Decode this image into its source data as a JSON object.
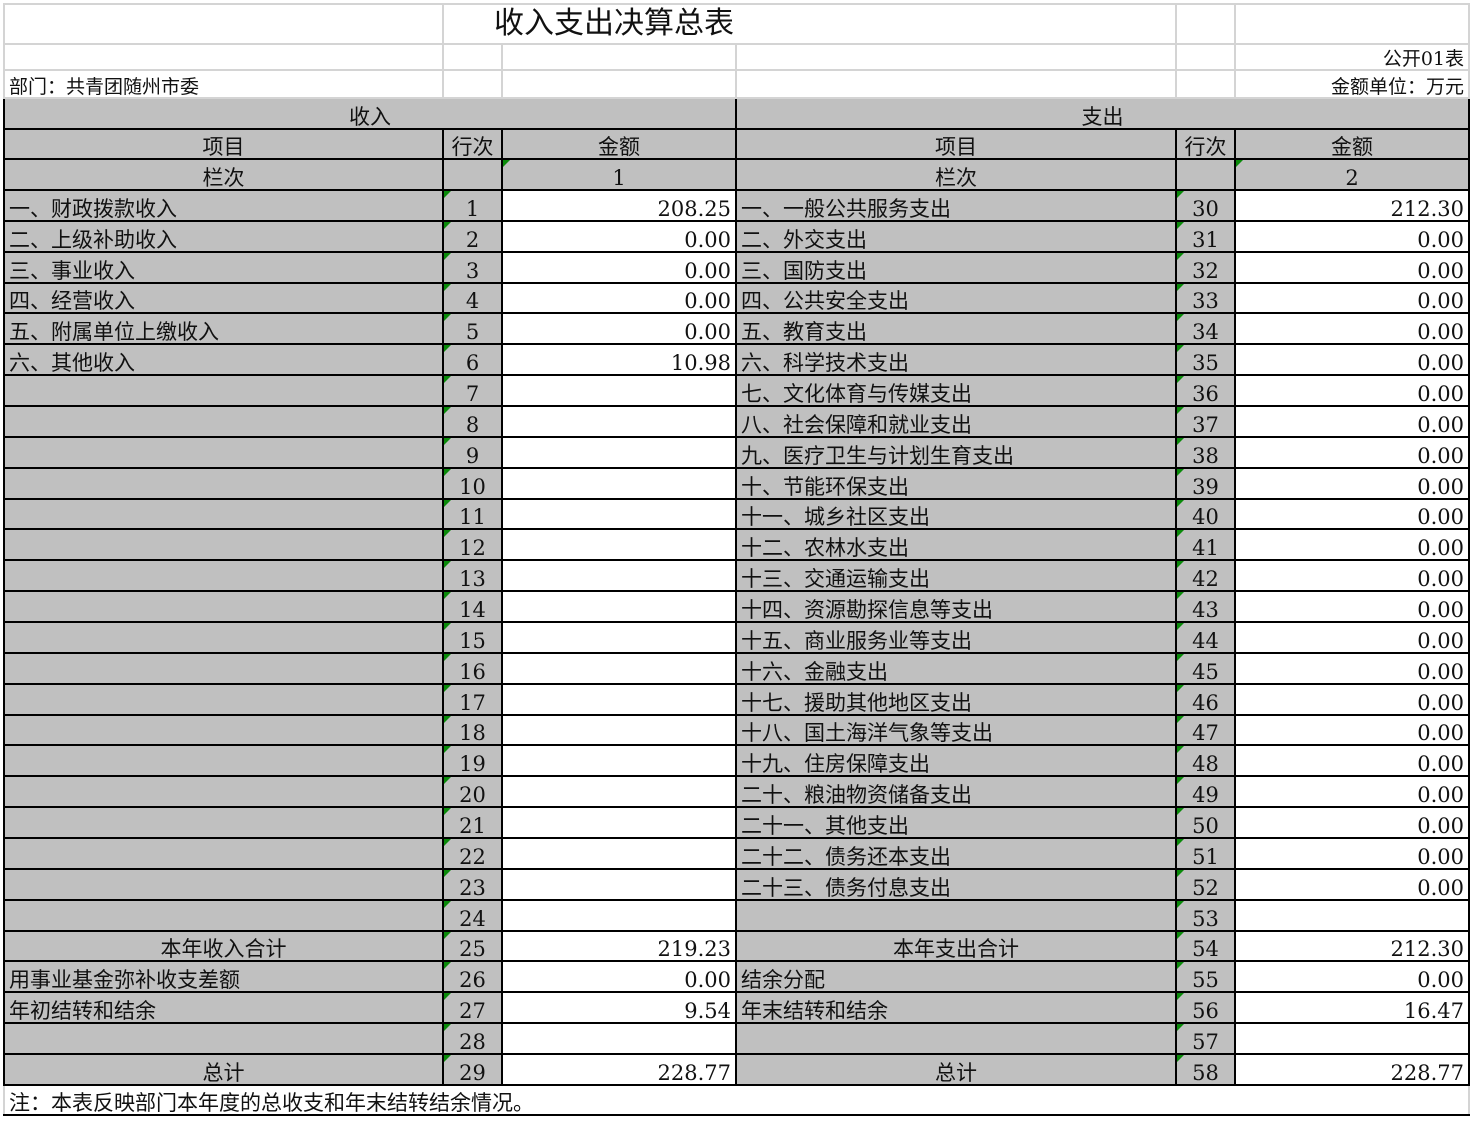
{
  "title": "收入支出决算总表",
  "form_code": "公开01表",
  "department": "部门：共青团随州市委",
  "unit": "金额单位：万元",
  "headers": {
    "income": "收入",
    "expense": "支出",
    "item": "项目",
    "line": "行次",
    "amount": "金额",
    "column_index": "栏次",
    "income_col": "1",
    "expense_col": "2"
  },
  "rows": [
    {
      "li": "一、财政拨款收入",
      "ln": "1",
      "la": "208.25",
      "ri": "一、一般公共服务支出",
      "rn": "30",
      "ra": "212.30"
    },
    {
      "li": "二、上级补助收入",
      "ln": "2",
      "la": "0.00",
      "ri": "二、外交支出",
      "rn": "31",
      "ra": "0.00"
    },
    {
      "li": "三、事业收入",
      "ln": "3",
      "la": "0.00",
      "ri": "三、国防支出",
      "rn": "32",
      "ra": "0.00"
    },
    {
      "li": "四、经营收入",
      "ln": "4",
      "la": "0.00",
      "ri": "四、公共安全支出",
      "rn": "33",
      "ra": "0.00"
    },
    {
      "li": "五、附属单位上缴收入",
      "ln": "5",
      "la": "0.00",
      "ri": "五、教育支出",
      "rn": "34",
      "ra": "0.00"
    },
    {
      "li": "六、其他收入",
      "ln": "6",
      "la": "10.98",
      "ri": "六、科学技术支出",
      "rn": "35",
      "ra": "0.00"
    },
    {
      "li": "",
      "ln": "7",
      "la": "",
      "ri": "七、文化体育与传媒支出",
      "rn": "36",
      "ra": "0.00"
    },
    {
      "li": "",
      "ln": "8",
      "la": "",
      "ri": "八、社会保障和就业支出",
      "rn": "37",
      "ra": "0.00"
    },
    {
      "li": "",
      "ln": "9",
      "la": "",
      "ri": "九、医疗卫生与计划生育支出",
      "rn": "38",
      "ra": "0.00"
    },
    {
      "li": "",
      "ln": "10",
      "la": "",
      "ri": "十、节能环保支出",
      "rn": "39",
      "ra": "0.00"
    },
    {
      "li": "",
      "ln": "11",
      "la": "",
      "ri": "十一、城乡社区支出",
      "rn": "40",
      "ra": "0.00"
    },
    {
      "li": "",
      "ln": "12",
      "la": "",
      "ri": "十二、农林水支出",
      "rn": "41",
      "ra": "0.00"
    },
    {
      "li": "",
      "ln": "13",
      "la": "",
      "ri": "十三、交通运输支出",
      "rn": "42",
      "ra": "0.00"
    },
    {
      "li": "",
      "ln": "14",
      "la": "",
      "ri": "十四、资源勘探信息等支出",
      "rn": "43",
      "ra": "0.00"
    },
    {
      "li": "",
      "ln": "15",
      "la": "",
      "ri": "十五、商业服务业等支出",
      "rn": "44",
      "ra": "0.00"
    },
    {
      "li": "",
      "ln": "16",
      "la": "",
      "ri": "十六、金融支出",
      "rn": "45",
      "ra": "0.00"
    },
    {
      "li": "",
      "ln": "17",
      "la": "",
      "ri": "十七、援助其他地区支出",
      "rn": "46",
      "ra": "0.00"
    },
    {
      "li": "",
      "ln": "18",
      "la": "",
      "ri": "十八、国土海洋气象等支出",
      "rn": "47",
      "ra": "0.00"
    },
    {
      "li": "",
      "ln": "19",
      "la": "",
      "ri": "十九、住房保障支出",
      "rn": "48",
      "ra": "0.00"
    },
    {
      "li": "",
      "ln": "20",
      "la": "",
      "ri": "二十、粮油物资储备支出",
      "rn": "49",
      "ra": "0.00"
    },
    {
      "li": "",
      "ln": "21",
      "la": "",
      "ri": "二十一、其他支出",
      "rn": "50",
      "ra": "0.00"
    },
    {
      "li": "",
      "ln": "22",
      "la": "",
      "ri": "二十二、债务还本支出",
      "rn": "51",
      "ra": "0.00"
    },
    {
      "li": "",
      "ln": "23",
      "la": "",
      "ri": "二十三、债务付息支出",
      "rn": "52",
      "ra": "0.00"
    },
    {
      "li": "",
      "ln": "24",
      "la": "",
      "ri": "",
      "rn": "53",
      "ra": ""
    },
    {
      "li": "本年收入合计",
      "ln": "25",
      "la": "219.23",
      "ri": "本年支出合计",
      "rn": "54",
      "ra": "212.30",
      "center": true
    },
    {
      "li": "用事业基金弥补收支差额",
      "ln": "26",
      "la": "0.00",
      "ri": "结余分配",
      "rn": "55",
      "ra": "0.00"
    },
    {
      "li": "年初结转和结余",
      "ln": "27",
      "la": "9.54",
      "ri": "年末结转和结余",
      "rn": "56",
      "ra": "16.47"
    },
    {
      "li": "",
      "ln": "28",
      "la": "",
      "ri": "",
      "rn": "57",
      "ra": ""
    },
    {
      "li": "总计",
      "ln": "29",
      "la": "228.77",
      "ri": "总计",
      "rn": "58",
      "ra": "228.77",
      "center": true
    }
  ],
  "note": "注：本表反映部门本年度的总收支和年末结转结余情况。",
  "colors": {
    "header_fill": "#c0c0c0",
    "grid": "#000000",
    "marker": "#0a8a0a"
  }
}
